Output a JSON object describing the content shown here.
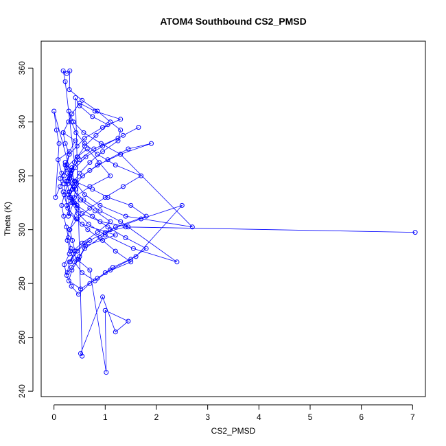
{
  "chart_data": {
    "type": "line",
    "title": "ATOM4 Southbound CS2_PMSD",
    "xlabel": "CS2_PMSD",
    "ylabel": "Theta (K)",
    "xlim": [
      -0.25,
      7.25
    ],
    "ylim": [
      238,
      370
    ],
    "x_ticks": [
      "0",
      "1",
      "2",
      "3",
      "4",
      "5",
      "6",
      "7"
    ],
    "y_ticks": [
      "240",
      "260",
      "280",
      "300",
      "320",
      "340",
      "360"
    ],
    "grid": false,
    "marker": "open-circle",
    "color": "#0000ff",
    "series": [
      {
        "x": [
          0.22,
          0.31,
          0.27,
          0.35,
          0.42,
          0.38,
          0.28,
          0.33,
          0.45,
          0.31,
          0.36,
          0.41,
          0.3,
          0.26,
          0.34,
          0.5,
          0.62,
          1.2,
          0.55,
          0.3,
          0.18,
          0.12,
          0.24,
          0.45,
          0.65,
          0.88,
          1.1,
          0.7,
          0.4,
          0.25,
          0.2,
          0.15,
          0.08,
          0.3,
          0.42,
          0.18,
          0.28,
          0.35,
          0.5,
          0.8,
          1.3,
          0.95,
          0.6,
          0.45,
          0.3,
          0.22,
          0.26,
          0.4,
          0.75,
          1.05,
          1.5,
          1.8,
          1.2,
          0.9,
          0.6,
          0.48,
          0.35,
          0.29,
          0.52,
          0.85,
          1.15,
          1.6,
          2.5,
          1.7,
          1.1,
          0.7,
          0.45,
          0.32,
          0.38,
          0.6,
          1.0,
          1.4,
          7.05,
          1.45,
          0.9,
          0.55,
          0.4,
          0.3,
          0.24,
          0.33,
          0.5,
          0.78,
          1.25,
          1.65,
          1.35,
          0.95,
          0.62,
          0.42,
          0.31,
          0.36,
          0.58,
          0.9,
          1.3,
          2.4,
          1.55,
          1.0,
          0.68,
          0.47,
          0.35,
          0.29,
          0.41,
          0.7,
          1.05,
          1.45,
          1.9,
          1.3,
          0.85,
          0.56,
          0.4,
          0.3,
          0.27,
          0.44,
          0.66,
          0.95,
          1.2,
          1.5,
          1.0,
          0.7,
          0.48,
          0.34,
          0.25,
          0.2,
          0.3,
          0.55,
          0.85,
          1.1,
          0.8,
          0.52,
          0.37,
          0.3,
          0.35,
          0.46,
          0.6,
          0.82,
          1.05,
          0.75,
          0.5,
          0.42,
          0.55,
          0.52,
          0.95,
          1.2,
          1.45,
          1.0,
          1.02,
          0.7,
          0.45,
          0.33,
          0.28,
          0.24,
          0.19,
          0.15,
          0.2,
          0.27,
          0.33,
          0.4,
          0.22,
          0.18,
          0.25,
          0.31,
          0.3,
          0.55,
          0.85,
          1.1,
          1.3,
          1.25,
          0.95,
          0.7,
          0.5,
          0.36,
          0.28,
          0.45,
          0.75,
          1.05,
          1.4,
          1.8,
          1.5,
          1.1,
          0.8,
          0.55,
          0.4,
          0.32,
          0.26,
          0.3,
          0.46,
          0.7,
          1.0,
          1.35,
          1.7,
          1.2,
          0.85,
          0.6,
          0.43,
          0.34,
          0.29,
          0.38,
          0.58,
          0.92,
          1.3,
          2.7,
          1.4,
          0.9,
          0.6,
          0.44,
          0.33,
          0.0,
          0.05,
          0.1,
          0.03,
          0.12,
          0.2,
          0.25,
          0.3,
          0.22,
          0.18
        ],
        "y": [
          325,
          320,
          318,
          322,
          315,
          310,
          305,
          312,
          308,
          300,
          296,
          292,
          288,
          284,
          286,
          290,
          294,
          298,
          302,
          306,
          314,
          319,
          323,
          327,
          330,
          325,
          320,
          316,
          312,
          309,
          317,
          321,
          326,
          329,
          333,
          336,
          340,
          343,
          347,
          344,
          341,
          338,
          334,
          331,
          328,
          324,
          321,
          318,
          315,
          312,
          309,
          305,
          301,
          297,
          293,
          289,
          285,
          281,
          278,
          282,
          286,
          290,
          309,
          304,
          300,
          296,
          292,
          288,
          291,
          295,
          299,
          301,
          299,
          301,
          303,
          306,
          310,
          314,
          318,
          322,
          326,
          330,
          334,
          338,
          335,
          331,
          327,
          323,
          319,
          315,
          311,
          307,
          303,
          288,
          293,
          298,
          302,
          306,
          310,
          314,
          318,
          322,
          326,
          330,
          332,
          328,
          324,
          320,
          316,
          312,
          308,
          304,
          300,
          296,
          292,
          288,
          284,
          280,
          276,
          279,
          283,
          287,
          291,
          295,
          299,
          303,
          307,
          311,
          315,
          319,
          323,
          327,
          331,
          335,
          339,
          342,
          346,
          349,
          253,
          254,
          275,
          262,
          266,
          270,
          247,
          285,
          289,
          293,
          297,
          301,
          305,
          309,
          313,
          317,
          321,
          325,
          355,
          359,
          358,
          359,
          352,
          348,
          344,
          340,
          337,
          333,
          329,
          325,
          321,
          317,
          313,
          309,
          305,
          301,
          297,
          293,
          289,
          285,
          281,
          284,
          288,
          292,
          296,
          300,
          304,
          308,
          312,
          316,
          320,
          324,
          328,
          332,
          336,
          340,
          344,
          340,
          336,
          332,
          328,
          301,
          305,
          309,
          313,
          317,
          321,
          344,
          337,
          332,
          312,
          316,
          320,
          324,
          328,
          332,
          336
        ]
      }
    ]
  }
}
